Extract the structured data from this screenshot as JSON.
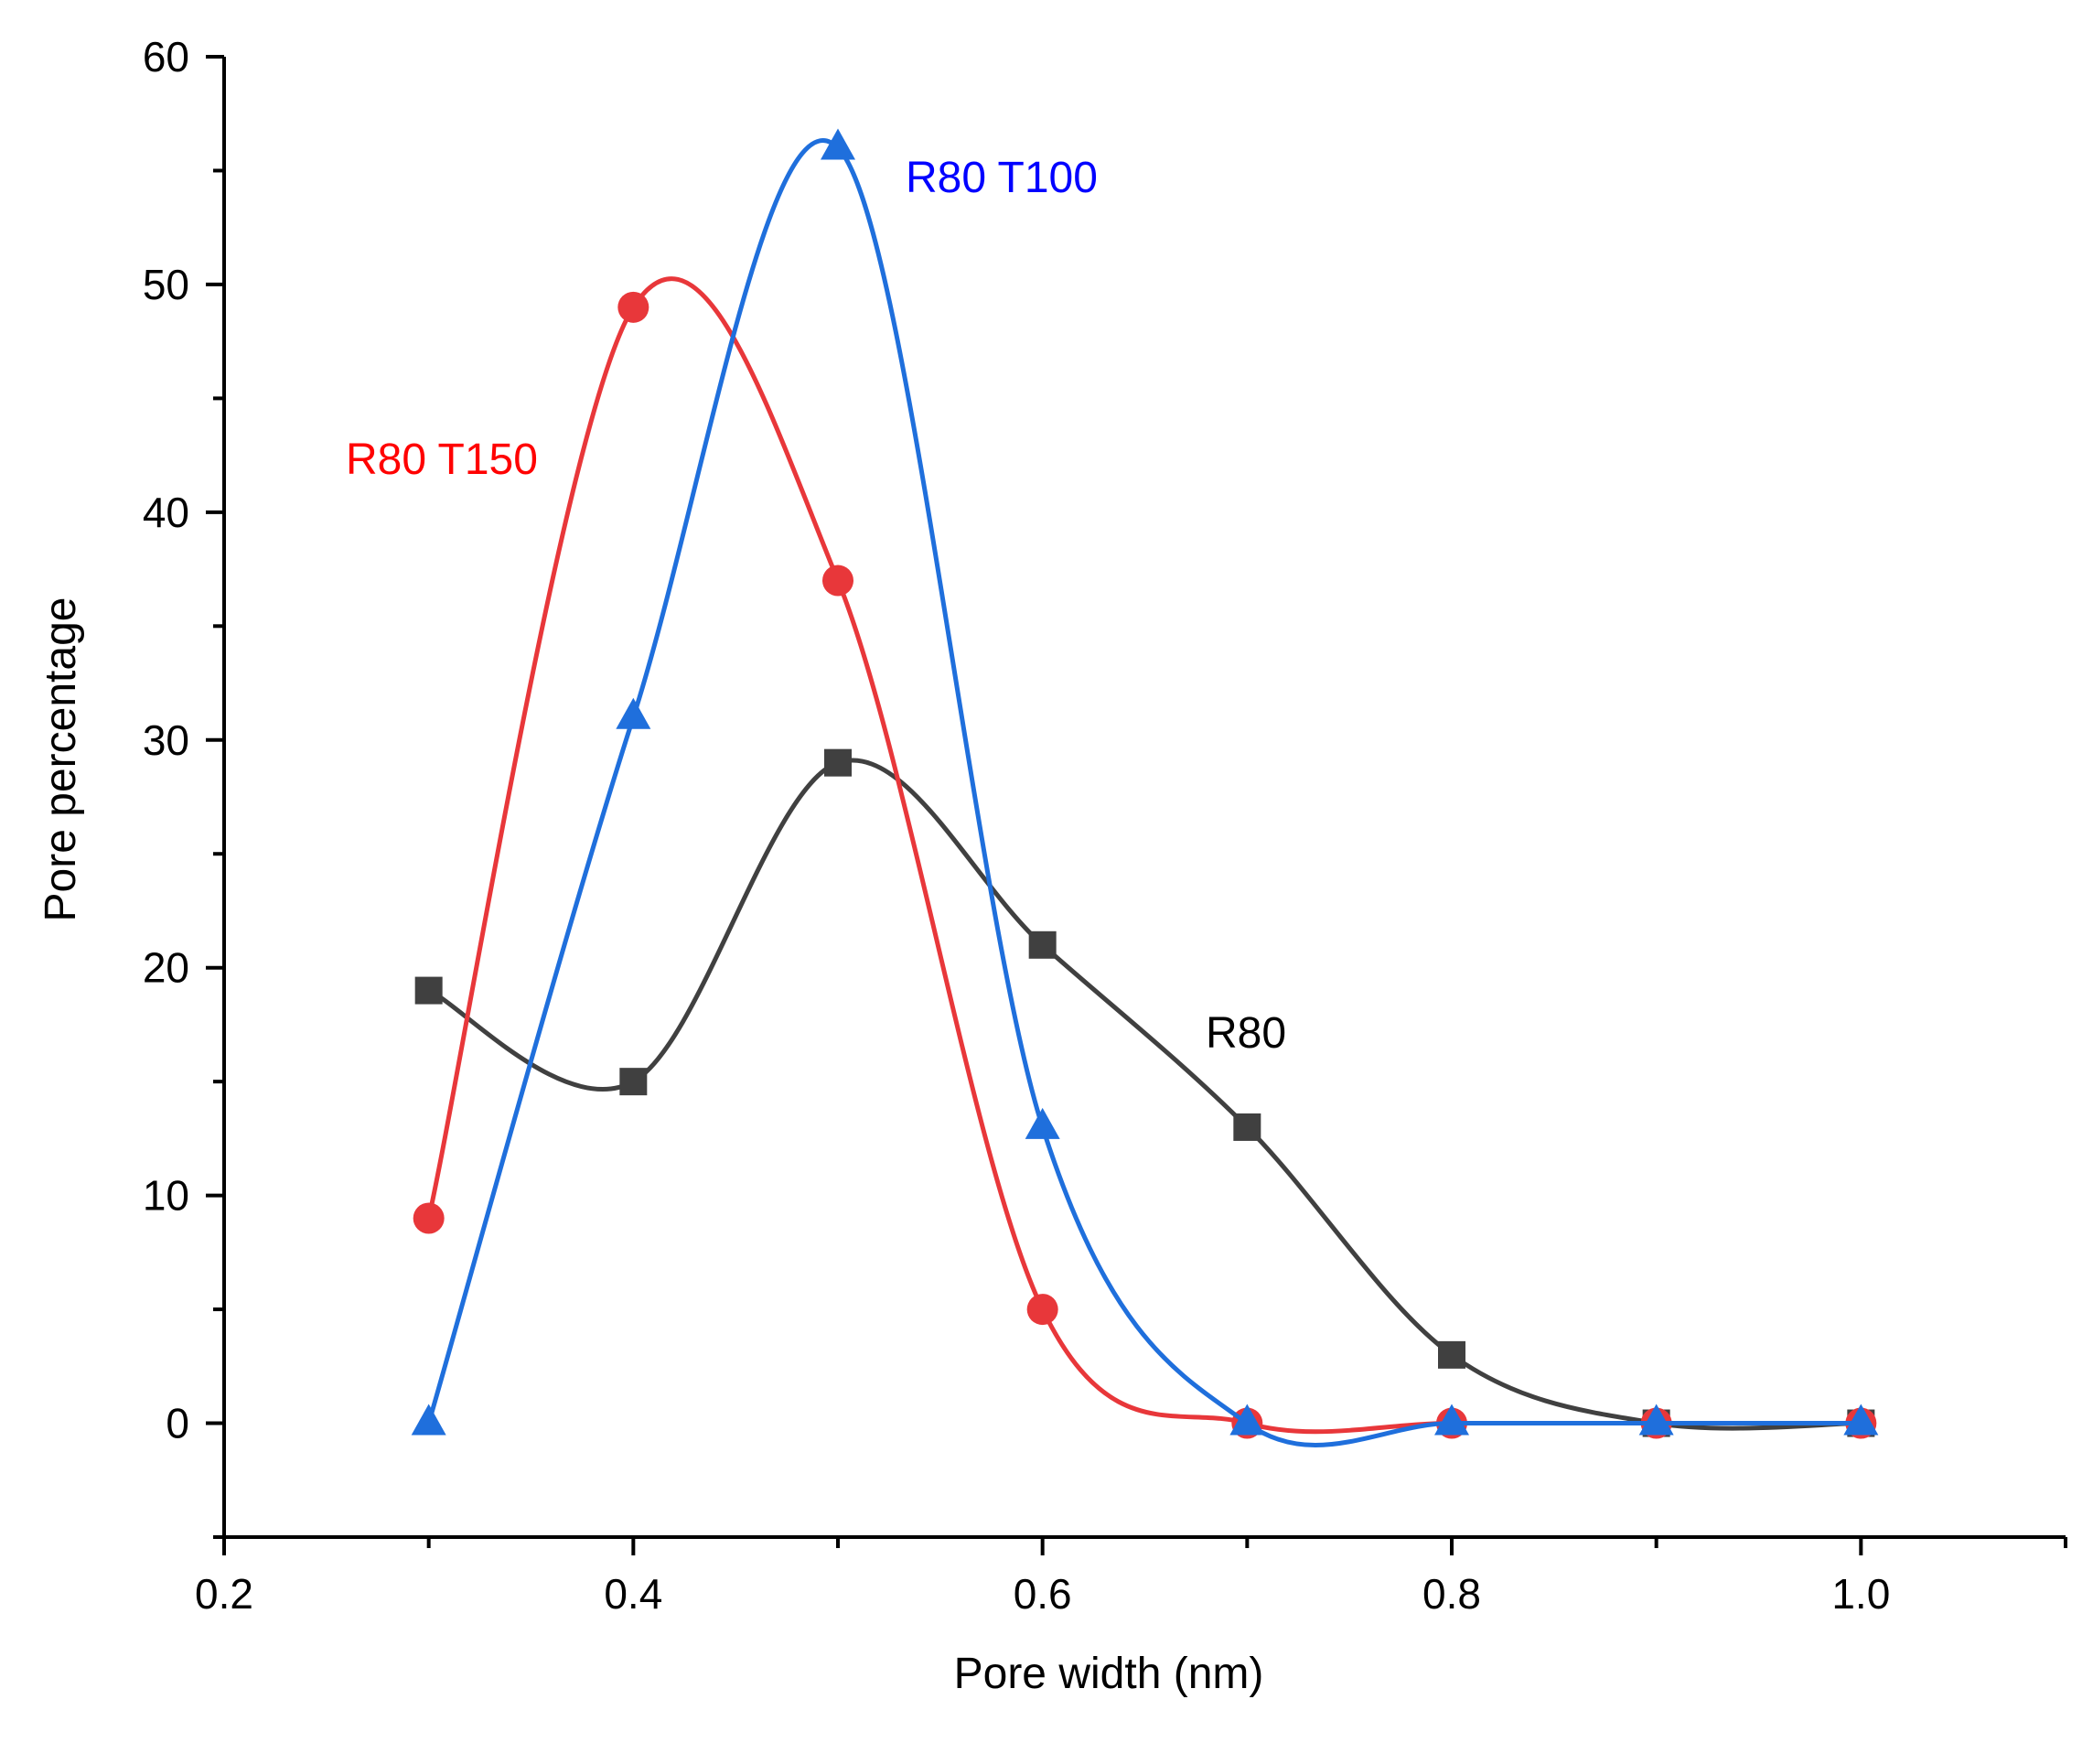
{
  "chart_data": {
    "type": "line",
    "title": "",
    "xlabel": "Pore width (nm)",
    "ylabel": "Pore percentage",
    "xlim": [
      0.2,
      1.1
    ],
    "ylim": [
      -5,
      60
    ],
    "xticks": [
      0.2,
      0.4,
      0.6,
      0.8,
      1.0
    ],
    "xtick_labels": [
      "0.2",
      "0.4",
      "0.6",
      "0.8",
      "1.0"
    ],
    "yticks": [
      0,
      10,
      20,
      30,
      40,
      50,
      60
    ],
    "ytick_labels": [
      "0",
      "10",
      "20",
      "30",
      "40",
      "50",
      "60"
    ],
    "grid": false,
    "legend": "inline labels",
    "smooth": true,
    "series": [
      {
        "name": "R80",
        "label": "R80",
        "color": "#404040",
        "label_color": "#000000",
        "marker": "square",
        "x": [
          0.3,
          0.4,
          0.5,
          0.6,
          0.7,
          0.8,
          0.9,
          1.0
        ],
        "values": [
          19,
          15,
          29,
          21,
          13,
          3,
          0,
          0
        ]
      },
      {
        "name": "R80 T150",
        "label": "R80 T150",
        "color": "#e8373a",
        "label_color": "#ff0000",
        "marker": "circle",
        "x": [
          0.3,
          0.4,
          0.5,
          0.6,
          0.7,
          0.8,
          0.9,
          1.0
        ],
        "values": [
          9,
          49,
          37,
          5,
          0,
          0,
          0,
          0
        ]
      },
      {
        "name": "R80 T100",
        "label": "R80 T100",
        "color": "#1f6fdc",
        "label_color": "#0000ff",
        "marker": "triangle",
        "x": [
          0.3,
          0.4,
          0.5,
          0.6,
          0.7,
          0.8,
          0.9,
          1.0
        ],
        "values": [
          0,
          31,
          56,
          13,
          0,
          0,
          0,
          0
        ]
      }
    ]
  }
}
